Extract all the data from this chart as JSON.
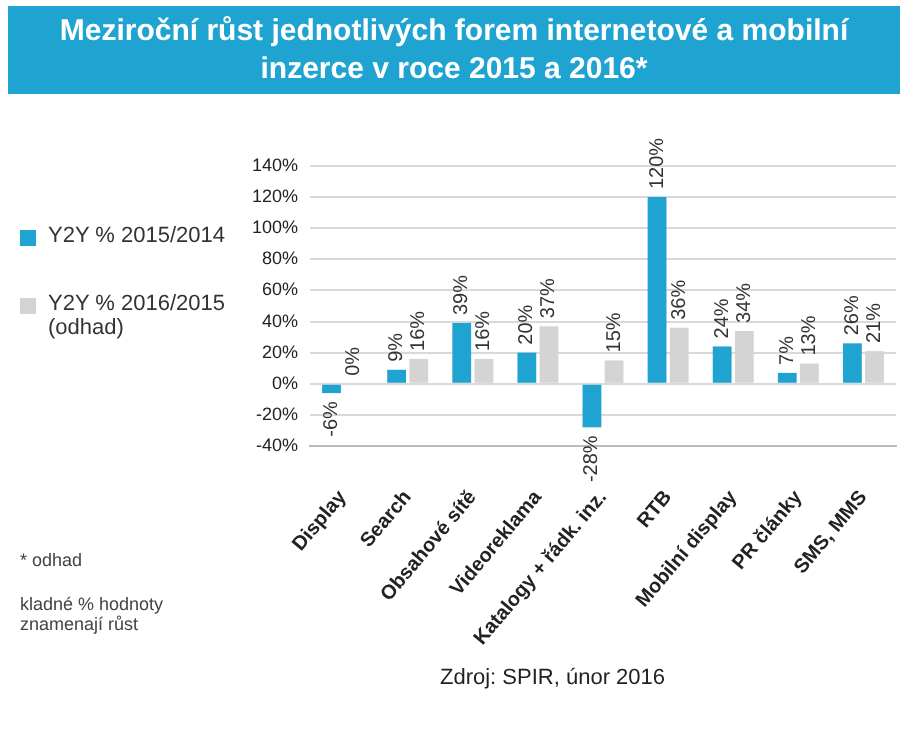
{
  "chart_data": {
    "type": "bar",
    "title": "Meziroční růst jednotlivých forem internetové a mobilní inzerce v roce 2015 a 2016*",
    "categories": [
      "Display",
      "Search",
      "Obsahové sítě",
      "Videoreklama",
      "Katalogy + řádk. inz.",
      "RTB",
      "Mobilní display",
      "PR články",
      "SMS, MMS"
    ],
    "series": [
      {
        "name": "Y2Y % 2015/2014",
        "color": "#1fa3d1",
        "values": [
          -6,
          9,
          39,
          20,
          -28,
          120,
          24,
          7,
          26
        ],
        "value_labels": [
          "-6%",
          "9%",
          "39%",
          "20%",
          "-28%",
          "120%",
          "24%",
          "7%",
          "26%"
        ]
      },
      {
        "name": "Y2Y % 2016/2015 (odhad)",
        "color": "#d4d4d4",
        "values": [
          0,
          16,
          16,
          37,
          15,
          36,
          34,
          13,
          21
        ],
        "value_labels": [
          "0%",
          "16%",
          "16%",
          "37%",
          "15%",
          "36%",
          "34%",
          "13%",
          "21%"
        ]
      }
    ],
    "ylim": [
      -40,
      140
    ],
    "yticks": [
      {
        "value": -40,
        "label": "-40%"
      },
      {
        "value": -20,
        "label": "-20%"
      },
      {
        "value": 0,
        "label": "0%"
      },
      {
        "value": 20,
        "label": "20%"
      },
      {
        "value": 40,
        "label": "40%"
      },
      {
        "value": 60,
        "label": "60%"
      },
      {
        "value": 80,
        "label": "80%"
      },
      {
        "value": 100,
        "label": "100%"
      },
      {
        "value": 120,
        "label": "120%"
      },
      {
        "value": 140,
        "label": "140%"
      }
    ],
    "grid": "y",
    "legend": "left",
    "annotations": [
      "* odhad",
      "kladné % hodnoty znamenají růst",
      "Zdroj: SPIR, únor 2016"
    ]
  }
}
